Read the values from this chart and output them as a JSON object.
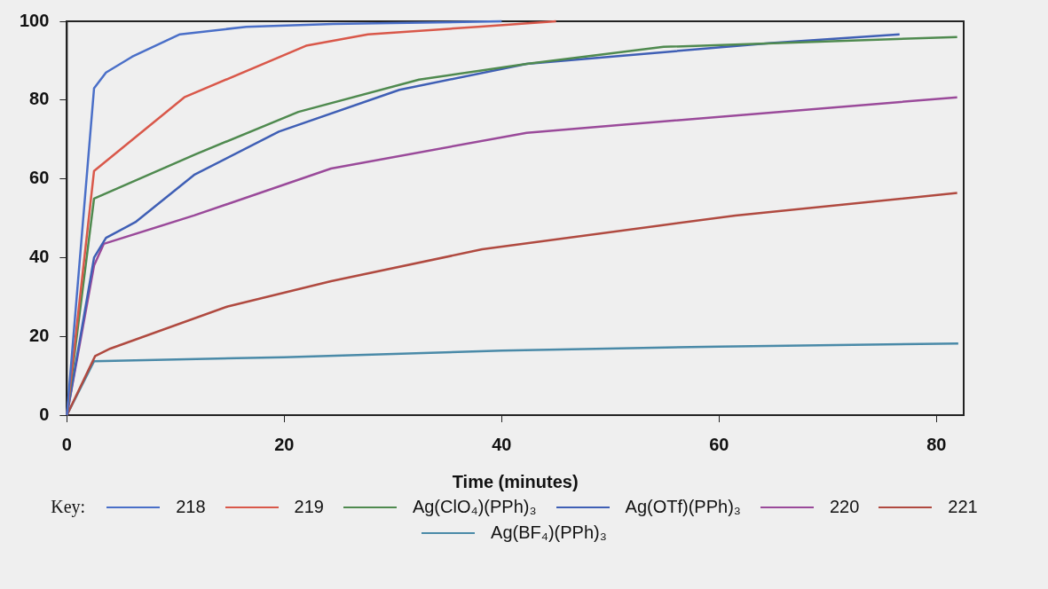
{
  "chart_data": {
    "type": "line",
    "xlabel": "Time (minutes)",
    "legend_title": "Key:",
    "legend": "bottom",
    "grid": false,
    "marker": "none",
    "line_style": "solid",
    "xlim": [
      0,
      82.5
    ],
    "xticks": [
      0,
      20,
      40,
      60,
      80
    ],
    "ylim": [
      0,
      100
    ],
    "yticks": [
      0,
      20,
      40,
      60,
      80,
      100
    ],
    "series": [
      {
        "name": "218",
        "color": "#4a6fc8",
        "x": [
          0,
          2.5,
          3.6,
          6,
          10.4,
          16.5,
          24.5,
          40
        ],
        "values": [
          0,
          83,
          87,
          91,
          96.7,
          98.6,
          99.3,
          100
        ]
      },
      {
        "name": "219",
        "color": "#d9584a",
        "x": [
          0,
          2.5,
          10.8,
          22,
          27.7,
          37.8,
          45
        ],
        "values": [
          0,
          62,
          80.7,
          93.8,
          96.7,
          98.6,
          100
        ]
      },
      {
        "name": "Ag(ClO₄)(PPh)₃",
        "color": "#4f8a4f",
        "x": [
          0,
          2.5,
          11.8,
          21.3,
          32.4,
          42.3,
          54.9,
          81.9
        ],
        "values": [
          0,
          55,
          66.2,
          77,
          85.2,
          89.2,
          93.5,
          96
        ]
      },
      {
        "name": "Ag(OTf)(PPh)₃",
        "color": "#3f5fb5",
        "x": [
          0,
          2.5,
          3.6,
          6.3,
          11.7,
          19.5,
          30.6,
          42.3,
          64.8,
          76.6
        ],
        "values": [
          0,
          40,
          45,
          49,
          61,
          72,
          82.6,
          89.2,
          94.5,
          96.7
        ]
      },
      {
        "name": "220",
        "color": "#9a4a9a",
        "x": [
          0,
          2.5,
          3.4,
          11.7,
          24.3,
          42.3,
          51.5,
          81.9
        ],
        "values": [
          0,
          38,
          43.5,
          50.7,
          62.6,
          71.7,
          73.8,
          80.7
        ]
      },
      {
        "name": "221",
        "color": "#b04a40",
        "x": [
          0,
          2.6,
          4,
          14.8,
          24.3,
          38.2,
          61.5,
          81.9
        ],
        "values": [
          0,
          15,
          16.9,
          27.6,
          34,
          42.1,
          50.7,
          56.4
        ]
      },
      {
        "name": "Ag(BF₄)(PPh)₃",
        "color": "#4a8aa8",
        "x": [
          0,
          2.5,
          20,
          40,
          60,
          82
        ],
        "values": [
          0,
          13.7,
          14.7,
          16.4,
          17.4,
          18.2
        ]
      }
    ]
  }
}
